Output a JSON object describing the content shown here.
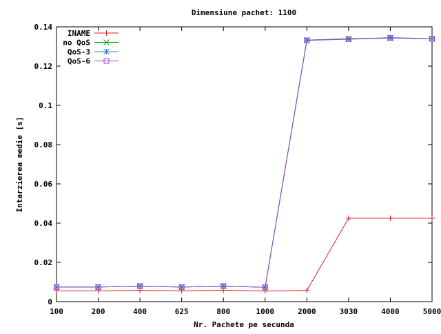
{
  "chart_data": {
    "type": "line",
    "title": "Dimensiune pachet: 1100",
    "xlabel": "Nr. Pachete pe secunda",
    "ylabel": "Intarzierea medie [s]",
    "categories": [
      "100",
      "200",
      "400",
      "625",
      "800",
      "1000",
      "2000",
      "3030",
      "4000",
      "5000"
    ],
    "ylim": [
      0,
      0.14
    ],
    "yticks": [
      "0",
      "0.02",
      "0.04",
      "0.06",
      "0.08",
      "0.1",
      "0.12",
      "0.14"
    ],
    "legend_position": "top-left",
    "grid": false,
    "series": [
      {
        "name": "INAME",
        "color": "#e41a1c",
        "marker": "plus",
        "values": [
          0.0055,
          0.0055,
          0.0057,
          0.0055,
          0.0058,
          0.0054,
          0.0057,
          0.0425,
          0.0425,
          0.0425
        ]
      },
      {
        "name": "no QoS",
        "color": "#00a000",
        "marker": "cross",
        "values": [
          0.0074,
          0.0074,
          0.0079,
          0.0074,
          0.0079,
          0.0073,
          0.1332,
          0.134,
          0.1343,
          0.134
        ]
      },
      {
        "name": "QoS-3",
        "color": "#2a7fd4",
        "marker": "star",
        "values": [
          0.0074,
          0.0074,
          0.008,
          0.0074,
          0.008,
          0.0073,
          0.1333,
          0.1338,
          0.1345,
          0.134
        ]
      },
      {
        "name": "QoS-6",
        "color": "#a040c0",
        "marker": "square",
        "values": [
          0.0074,
          0.0074,
          0.0079,
          0.0074,
          0.0079,
          0.0073,
          0.1331,
          0.1337,
          0.1343,
          0.1339
        ]
      }
    ]
  }
}
